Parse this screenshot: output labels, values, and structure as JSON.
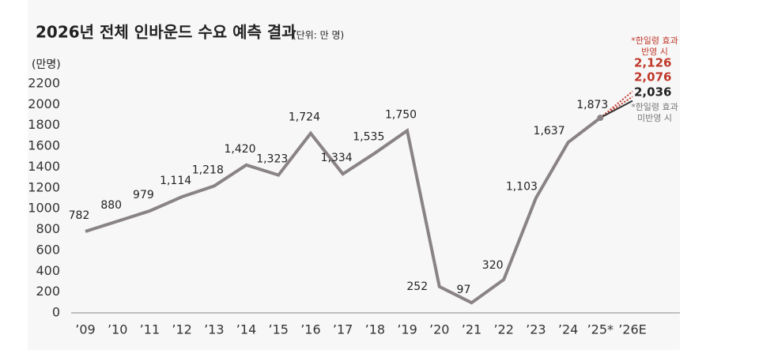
{
  "chart_data": {
    "type": "line",
    "title": "2026년 전체 인바운드 수요 예측 결과",
    "subtitle": "(단위: 만 명)",
    "y_label": "(만명)",
    "categories": [
      "’09",
      "’10",
      "’11",
      "’12",
      "’13",
      "’14",
      "’15",
      "’16",
      "’17",
      "’18",
      "’19",
      "’20",
      "’21",
      "’22",
      "’23",
      "’24",
      "’25*",
      "’26E"
    ],
    "ylim": [
      0,
      2200
    ],
    "yticks": [
      0,
      200,
      400,
      600,
      800,
      1000,
      1200,
      1400,
      1600,
      1800,
      2000,
      2200
    ],
    "series": [
      {
        "color": "#8a8385",
        "values": [
          782,
          880,
          979,
          1114,
          1218,
          1420,
          1323,
          1724,
          1334,
          1535,
          1750,
          252,
          97,
          320,
          1103,
          1637,
          1873,
          null
        ],
        "value_labels": [
          "782",
          "880",
          "979",
          "1,114",
          "1,218",
          "1,420",
          "1,323",
          "1,724",
          "1,334",
          "1,535",
          "1,750",
          "252",
          "97",
          "320",
          "1,103",
          "1,637",
          "1,873",
          null
        ]
      },
      {
        "color": "#c0392b",
        "values": [
          null,
          null,
          null,
          null,
          null,
          null,
          null,
          null,
          null,
          null,
          null,
          null,
          null,
          null,
          null,
          null,
          1873,
          2126
        ],
        "value_labels": [
          null,
          null,
          null,
          null,
          null,
          null,
          null,
          null,
          null,
          null,
          null,
          null,
          null,
          null,
          null,
          null,
          null,
          "2,126"
        ]
      },
      {
        "color": "#c0392b",
        "values": [
          null,
          null,
          null,
          null,
          null,
          null,
          null,
          null,
          null,
          null,
          null,
          null,
          null,
          null,
          null,
          null,
          1873,
          2076
        ],
        "value_labels": [
          null,
          null,
          null,
          null,
          null,
          null,
          null,
          null,
          null,
          null,
          null,
          null,
          null,
          null,
          null,
          null,
          null,
          "2,076"
        ]
      },
      {
        "color": "#333333",
        "values": [
          null,
          null,
          null,
          null,
          null,
          null,
          null,
          null,
          null,
          null,
          null,
          null,
          null,
          null,
          null,
          null,
          1873,
          2036
        ],
        "value_labels": [
          null,
          null,
          null,
          null,
          null,
          null,
          null,
          null,
          null,
          null,
          null,
          null,
          null,
          null,
          null,
          null,
          null,
          "2,036"
        ]
      }
    ],
    "annotations": [
      {
        "lines": [
          "*한일령 효과",
          "반영 시"
        ],
        "color": "#c0392b"
      },
      {
        "lines": [
          "*한일령 효과",
          "미반영 시"
        ],
        "color": "#777777"
      }
    ]
  }
}
